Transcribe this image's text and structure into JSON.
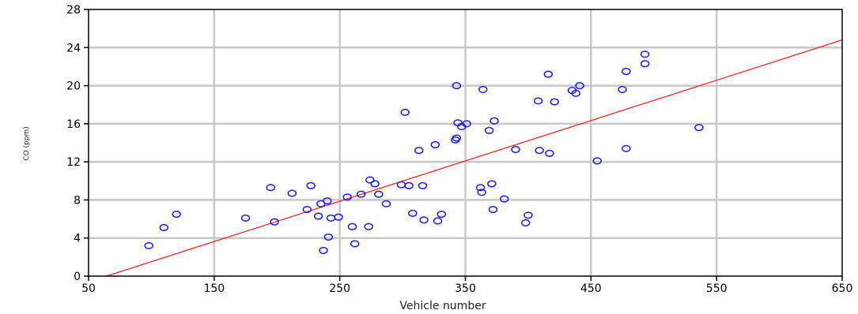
{
  "chart_data": {
    "type": "scatter",
    "title": "",
    "xlabel": "Vehicle number",
    "ylabel": "CO (ppm)",
    "xlim": [
      50,
      650
    ],
    "ylim": [
      0,
      28
    ],
    "xticks": [
      50,
      150,
      250,
      350,
      450,
      550,
      650
    ],
    "yticks": [
      0,
      4,
      8,
      12,
      16,
      20,
      24,
      28
    ],
    "xtick_labels": [
      "50",
      "150",
      "250",
      "350",
      "450",
      "550",
      "650"
    ],
    "ytick_labels": [
      "0",
      "4",
      "8",
      "12",
      "16",
      "20",
      "24",
      "28"
    ],
    "grid": true,
    "point_color": "#1a1aff",
    "line_color": "#ff2020",
    "grid_color": "#c8c8c8",
    "series": [
      {
        "points": [
          [
            98,
            3.2
          ],
          [
            110,
            5.1
          ],
          [
            120,
            6.5
          ],
          [
            175,
            6.1
          ],
          [
            195,
            9.3
          ],
          [
            198,
            5.7
          ],
          [
            212,
            8.7
          ],
          [
            224,
            7.0
          ],
          [
            227,
            9.5
          ],
          [
            233,
            6.3
          ],
          [
            235,
            7.6
          ],
          [
            237,
            2.7
          ],
          [
            240,
            7.9
          ],
          [
            241,
            4.1
          ],
          [
            243,
            6.1
          ],
          [
            249,
            6.2
          ],
          [
            256,
            8.3
          ],
          [
            260,
            5.2
          ],
          [
            262,
            3.4
          ],
          [
            267,
            8.6
          ],
          [
            273,
            5.2
          ],
          [
            274,
            10.1
          ],
          [
            278,
            9.7
          ],
          [
            281,
            8.6
          ],
          [
            287,
            7.6
          ],
          [
            299,
            9.6
          ],
          [
            302,
            17.2
          ],
          [
            305,
            9.5
          ],
          [
            308,
            6.6
          ],
          [
            313,
            13.2
          ],
          [
            316,
            9.5
          ],
          [
            317,
            5.9
          ],
          [
            326,
            13.8
          ],
          [
            328,
            5.8
          ],
          [
            331,
            6.5
          ],
          [
            342,
            14.3
          ],
          [
            343,
            14.5
          ],
          [
            343,
            20.0
          ],
          [
            344,
            16.1
          ],
          [
            347,
            15.7
          ],
          [
            351,
            16.0
          ],
          [
            362,
            9.3
          ],
          [
            363,
            8.8
          ],
          [
            364,
            19.6
          ],
          [
            369,
            15.3
          ],
          [
            371,
            9.7
          ],
          [
            372,
            7.0
          ],
          [
            373,
            16.3
          ],
          [
            381,
            8.1
          ],
          [
            390,
            13.3
          ],
          [
            398,
            5.6
          ],
          [
            400,
            6.4
          ],
          [
            408,
            18.4
          ],
          [
            409,
            13.2
          ],
          [
            416,
            21.2
          ],
          [
            417,
            12.9
          ],
          [
            421,
            18.3
          ],
          [
            435,
            19.5
          ],
          [
            438,
            19.2
          ],
          [
            441,
            20.0
          ],
          [
            455,
            12.1
          ],
          [
            475,
            19.6
          ],
          [
            478,
            21.5
          ],
          [
            478,
            13.4
          ],
          [
            493,
            23.3
          ],
          [
            493,
            22.3
          ],
          [
            536,
            15.6
          ]
        ]
      }
    ],
    "fit_line": {
      "x": [
        50,
        650
      ],
      "y": [
        -0.6,
        24.8
      ]
    }
  }
}
